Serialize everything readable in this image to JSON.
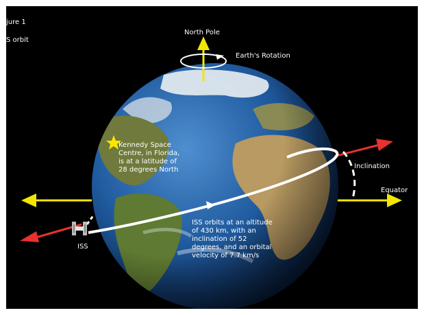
{
  "figure": {
    "label": "jure 1",
    "caption": "S orbit"
  },
  "labels": {
    "north_pole": "North Pole",
    "earths_rotation": "Earth's Rotation",
    "inclination": "Inclination",
    "equator": "Equator",
    "iss": "ISS"
  },
  "notes": {
    "kennedy": "Kennedy Space\nCentre, in Florida,\nis at a latitude of\n28 degrees North",
    "iss_orbit": "ISS orbits at an altitude\nof 430 km, with an\ninclination of 52\ndegrees, and an orbital\nvelocity of 7.7 km/s"
  },
  "colors": {
    "background": "#000000",
    "axis_arrows": "#f2e600",
    "orbit_arrows": "#e8322e",
    "orbit_path": "#ffffff",
    "star": "#ffe600",
    "ocean": "#1e5aa0",
    "land": "#7a7a3a"
  },
  "icons": {
    "star": "star-icon",
    "station": "space-station-icon",
    "rotation": "rotation-arrow-icon"
  }
}
